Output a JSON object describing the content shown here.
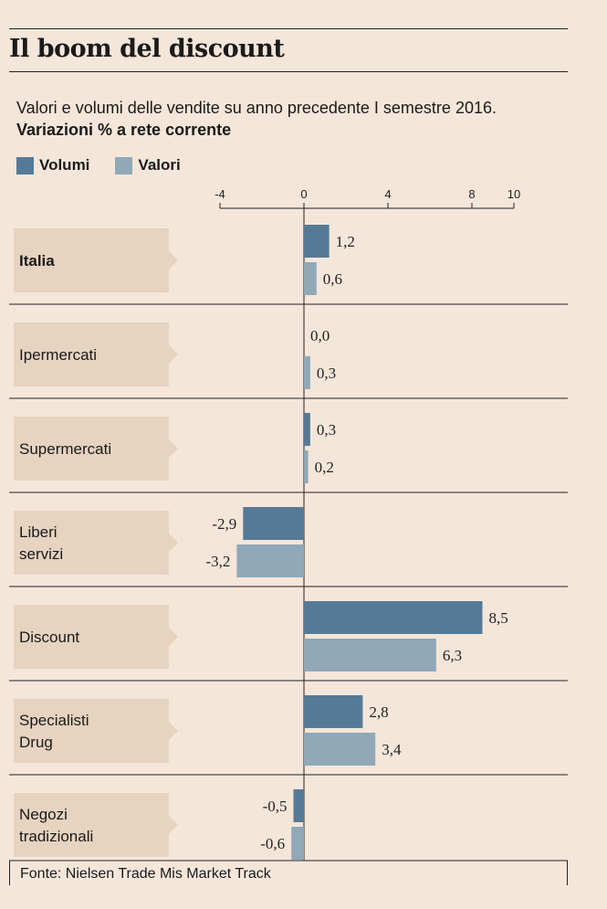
{
  "title": "Il boom del discount",
  "subtitle_line1": "Valori e volumi delle vendite su anno precedente I semestre 2016.",
  "subtitle_line2": "Variazioni % a rete corrente",
  "legend": {
    "volumi": "Volumi",
    "valori": "Valori"
  },
  "colors": {
    "volumi": "#567a96",
    "valori": "#90a8b8",
    "label_bg": "#e6d3c0",
    "background": "#f4e6d9"
  },
  "source": "Fonte: Nielsen Trade Mis Market Track",
  "chart_data": {
    "type": "bar",
    "orientation": "horizontal",
    "title": "Il boom del discount",
    "xlim": [
      -4,
      10
    ],
    "ticks": [
      -4,
      0,
      4,
      8,
      10
    ],
    "categories": [
      {
        "lines": [
          "Italia"
        ],
        "bold": true
      },
      {
        "lines": [
          "Ipermercati"
        ],
        "bold": false
      },
      {
        "lines": [
          "Supermercati"
        ],
        "bold": false
      },
      {
        "lines": [
          "Liberi",
          "servizi"
        ],
        "bold": false
      },
      {
        "lines": [
          "Discount"
        ],
        "bold": false
      },
      {
        "lines": [
          "Specialisti",
          "Drug"
        ],
        "bold": false
      },
      {
        "lines": [
          "Negozi",
          "tradizionali"
        ],
        "bold": false
      }
    ],
    "series": [
      {
        "name": "Volumi",
        "values": [
          1.2,
          0.0,
          0.3,
          -2.9,
          8.5,
          2.8,
          -0.5
        ],
        "labels": [
          "1,2",
          "0,0",
          "0,3",
          "-2,9",
          "8,5",
          "2,8",
          "-0,5"
        ]
      },
      {
        "name": "Valori",
        "values": [
          0.6,
          0.3,
          0.2,
          -3.2,
          6.3,
          3.4,
          -0.6
        ],
        "labels": [
          "0,6",
          "0,3",
          "0,2",
          "-3,2",
          "6,3",
          "3,4",
          "-0,6"
        ]
      }
    ]
  }
}
